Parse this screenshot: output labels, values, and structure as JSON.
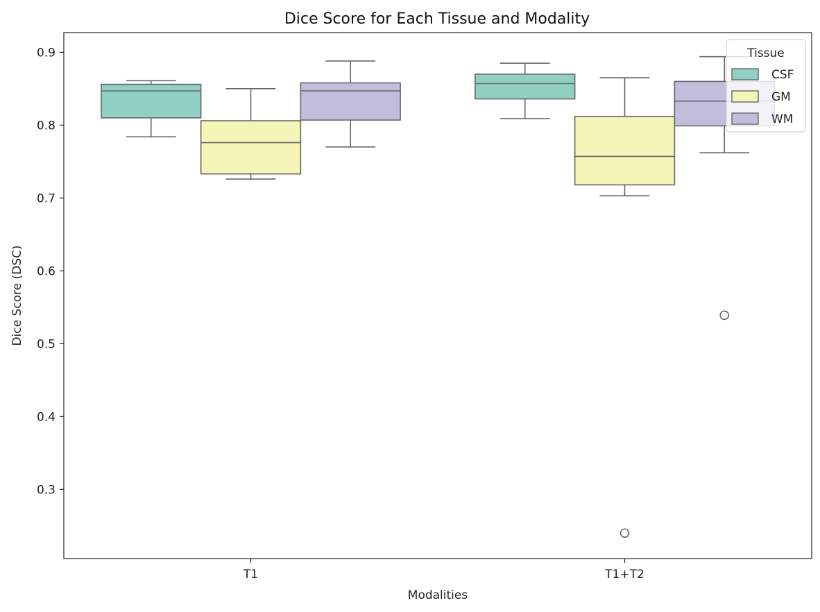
{
  "chart_data": {
    "type": "box",
    "title": "Dice Score for Each Tissue and Modality",
    "xlabel": "Modalities",
    "ylabel": "Dice Score (DSC)",
    "ylim": [
      0.205,
      0.927
    ],
    "yticks": [
      0.3,
      0.4,
      0.5,
      0.6,
      0.7,
      0.8,
      0.9
    ],
    "categories": [
      "T1",
      "T1+T2"
    ],
    "grid": false,
    "legend": {
      "title": "Tissue",
      "placement": "top-right"
    },
    "series": [
      {
        "name": "CSF",
        "color": "#8fd0c2",
        "boxes": [
          {
            "whisker_low": 0.784,
            "q1": 0.81,
            "median": 0.847,
            "q3": 0.856,
            "whisker_high": 0.861,
            "outliers": []
          },
          {
            "whisker_low": 0.809,
            "q1": 0.836,
            "median": 0.857,
            "q3": 0.87,
            "whisker_high": 0.885,
            "outliers": []
          }
        ]
      },
      {
        "name": "GM",
        "color": "#f6f5b8",
        "boxes": [
          {
            "whisker_low": 0.726,
            "q1": 0.733,
            "median": 0.776,
            "q3": 0.806,
            "whisker_high": 0.85,
            "outliers": []
          },
          {
            "whisker_low": 0.703,
            "q1": 0.718,
            "median": 0.757,
            "q3": 0.812,
            "whisker_high": 0.865,
            "outliers": [
              0.24
            ]
          }
        ]
      },
      {
        "name": "WM",
        "color": "#c1bdda",
        "boxes": [
          {
            "whisker_low": 0.77,
            "q1": 0.807,
            "median": 0.847,
            "q3": 0.858,
            "whisker_high": 0.888,
            "outliers": []
          },
          {
            "whisker_low": 0.762,
            "q1": 0.799,
            "median": 0.833,
            "q3": 0.86,
            "whisker_high": 0.894,
            "outliers": [
              0.539
            ]
          }
        ]
      }
    ]
  }
}
